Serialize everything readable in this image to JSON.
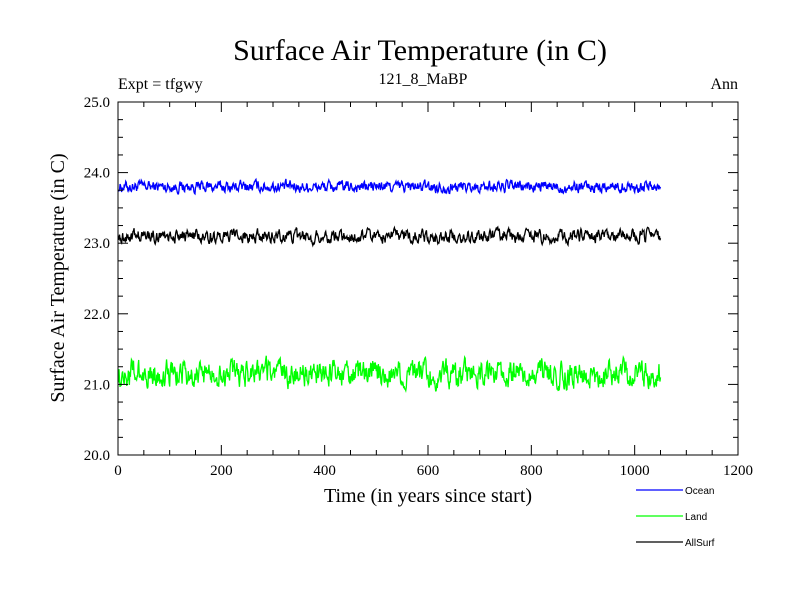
{
  "chart_data": {
    "type": "line",
    "title": "Surface Air Temperature (in C)",
    "subtitle": "121_8_MaBP",
    "left_label": "Expt = tfgwy",
    "right_label": "Ann",
    "xlabel": "Time (in years since start)",
    "ylabel": "Surface Air Temperature (in C)",
    "xlim": [
      0,
      1200
    ],
    "ylim": [
      20.0,
      25.0
    ],
    "x_ticks": [
      0,
      200,
      400,
      600,
      800,
      1000,
      1200
    ],
    "x_tick_labels": [
      "0",
      "200",
      "400",
      "600",
      "800",
      "1000",
      "1200"
    ],
    "y_ticks": [
      20.0,
      21.0,
      22.0,
      23.0,
      24.0,
      25.0
    ],
    "y_tick_labels": [
      "20.0",
      "21.0",
      "22.0",
      "23.0",
      "24.0",
      "25.0"
    ],
    "x_range": [
      1,
      1050
    ],
    "legend_position": "bottom-right, below plot",
    "series": [
      {
        "name": "Ocean",
        "color": "#0000ff",
        "mean": 23.8,
        "noise_amplitude": 0.09,
        "min": 23.6,
        "max": 24.0
      },
      {
        "name": "Land",
        "color": "#00ff00",
        "mean": 21.15,
        "noise_amplitude": 0.2,
        "min": 20.7,
        "max": 21.7
      },
      {
        "name": "AllSurf",
        "color": "#000000",
        "mean": 23.1,
        "noise_amplitude": 0.1,
        "min": 22.85,
        "max": 23.35
      }
    ]
  }
}
